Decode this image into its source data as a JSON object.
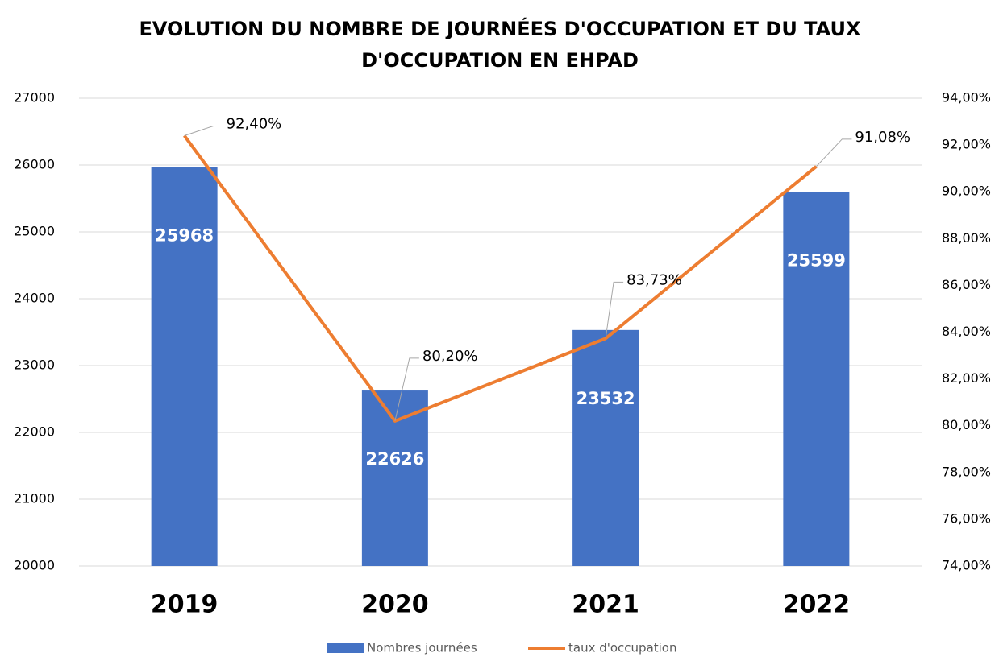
{
  "chart_data": {
    "type": "combo",
    "title": [
      "EVOLUTION DU NOMBRE DE JOURNÉES D'OCCUPATION ET DU TAUX",
      "D'OCCUPATION EN EHPAD"
    ],
    "categories": [
      "2019",
      "2020",
      "2021",
      "2022"
    ],
    "series": [
      {
        "name": "Nombres journées",
        "type": "bar",
        "color": "#4472c4",
        "values": [
          25968,
          22626,
          23532,
          25599
        ]
      },
      {
        "name": "taux d'occupation",
        "type": "line",
        "axis": "y2",
        "color": "#ed7d31",
        "values": [
          92.4,
          80.2,
          83.73,
          91.08
        ],
        "value_labels": [
          "92,40%",
          "80,20%",
          "83,73%",
          "91,08%"
        ]
      }
    ],
    "ylim": [
      20000,
      27000
    ],
    "yticks": [
      20000,
      21000,
      22000,
      23000,
      24000,
      25000,
      26000,
      27000
    ],
    "y2lim": [
      74,
      94
    ],
    "y2ticks": [
      {
        "value": 74,
        "label": "74,00%"
      },
      {
        "value": 76,
        "label": "76,00%"
      },
      {
        "value": 78,
        "label": "78,00%"
      },
      {
        "value": 80,
        "label": "80,00%"
      },
      {
        "value": 82,
        "label": "82,00%"
      },
      {
        "value": 84,
        "label": "84,00%"
      },
      {
        "value": 86,
        "label": "86,00%"
      },
      {
        "value": 88,
        "label": "88,00%"
      },
      {
        "value": 90,
        "label": "90,00%"
      },
      {
        "value": 92,
        "label": "92,00%"
      },
      {
        "value": 94,
        "label": "94,00%"
      }
    ],
    "grid": true,
    "legend": "bottom"
  }
}
